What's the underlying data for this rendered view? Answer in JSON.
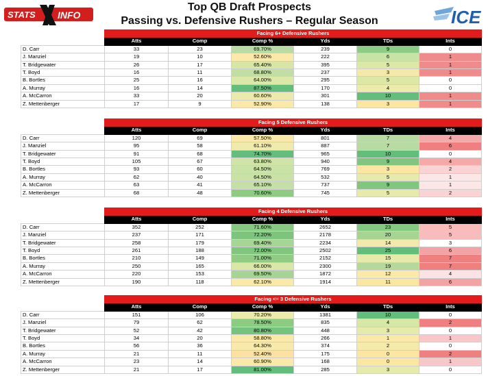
{
  "header": {
    "title_line1": "Top QB Draft Prospects",
    "title_line2": "Passing vs. Defensive Rushers – Regular Season",
    "logo_left_text": "STATS XINFO",
    "logo_right_text": "ICE"
  },
  "columns": [
    "Atts",
    "Comp",
    "Comp %",
    "Yds",
    "TDs",
    "Ints"
  ],
  "colors": {
    "bar_red": "#e21b1b",
    "header_black": "#000000"
  },
  "sections": [
    {
      "title": "Facing 6+ Defensive Rushers",
      "rows": [
        {
          "name": "D. Carr",
          "atts": "33",
          "comp": "23",
          "pct": "69.70%",
          "yds": "239",
          "tds": "9",
          "ints": "0",
          "c_pct": "#b9dca7",
          "c_tds": "#8dcc84",
          "c_ints": "#ffffff"
        },
        {
          "name": "J. Manziel",
          "atts": "19",
          "comp": "10",
          "pct": "52.60%",
          "yds": "222",
          "tds": "6",
          "ints": "1",
          "c_pct": "#fbe9a9",
          "c_tds": "#c7e3a6",
          "c_ints": "#f08b8b"
        },
        {
          "name": "T. Bridgewater",
          "atts": "26",
          "comp": "17",
          "pct": "65.40%",
          "yds": "395",
          "tds": "5",
          "ints": "1",
          "c_pct": "#d7e6a5",
          "c_tds": "#dbe8a6",
          "c_ints": "#f08b8b"
        },
        {
          "name": "T. Boyd",
          "atts": "16",
          "comp": "11",
          "pct": "68.80%",
          "yds": "237",
          "tds": "3",
          "ints": "1",
          "c_pct": "#c1dea5",
          "c_tds": "#f6e8a8",
          "c_ints": "#f08b8b"
        },
        {
          "name": "B. Bortles",
          "atts": "25",
          "comp": "16",
          "pct": "64.00%",
          "yds": "295",
          "tds": "5",
          "ints": "0",
          "c_pct": "#dce8a7",
          "c_tds": "#dbe8a6",
          "c_ints": "#ffffff"
        },
        {
          "name": "A. Murray",
          "atts": "16",
          "comp": "14",
          "pct": "87.50%",
          "yds": "170",
          "tds": "4",
          "ints": "0",
          "c_pct": "#63be7b",
          "c_tds": "#ecebaa",
          "c_ints": "#ffffff"
        },
        {
          "name": "A. McCarron",
          "atts": "33",
          "comp": "20",
          "pct": "60.60%",
          "yds": "301",
          "tds": "10",
          "ints": "1",
          "c_pct": "#ebeaab",
          "c_tds": "#63be7b",
          "c_ints": "#f08b8b"
        },
        {
          "name": "Z. Mettenberger",
          "atts": "17",
          "comp": "9",
          "pct": "52.90%",
          "yds": "138",
          "tds": "3",
          "ints": "1",
          "c_pct": "#fbe9a9",
          "c_tds": "#fbe6a2",
          "c_ints": "#f08b8b"
        }
      ]
    },
    {
      "title": "Facing 5 Defensive Rushers",
      "rows": [
        {
          "name": "D. Carr",
          "atts": "120",
          "comp": "69",
          "pct": "57.50%",
          "yds": "801",
          "tds": "7",
          "ints": "4",
          "c_pct": "#fbe9a9",
          "c_tds": "#b7dba3",
          "c_ints": "#f5a9a9"
        },
        {
          "name": "J. Manziel",
          "atts": "95",
          "comp": "58",
          "pct": "61.10%",
          "yds": "887",
          "tds": "7",
          "ints": "6",
          "c_pct": "#f1ebab",
          "c_tds": "#b7dba3",
          "c_ints": "#f08080"
        },
        {
          "name": "T. Bridgewater",
          "atts": "91",
          "comp": "68",
          "pct": "74.70%",
          "yds": "965",
          "tds": "10",
          "ints": "0",
          "c_pct": "#63be7b",
          "c_tds": "#63be7b",
          "c_ints": "#ffffff"
        },
        {
          "name": "T. Boyd",
          "atts": "105",
          "comp": "67",
          "pct": "63.80%",
          "yds": "940",
          "tds": "9",
          "ints": "4",
          "c_pct": "#cfe4a6",
          "c_tds": "#80c67e",
          "c_ints": "#f5a9a9"
        },
        {
          "name": "B. Bortles",
          "atts": "93",
          "comp": "60",
          "pct": "64.50%",
          "yds": "769",
          "tds": "3",
          "ints": "2",
          "c_pct": "#c9e2a6",
          "c_tds": "#fbe6a2",
          "c_ints": "#fad4d4"
        },
        {
          "name": "A. Murray",
          "atts": "62",
          "comp": "40",
          "pct": "64.50%",
          "yds": "532",
          "tds": "5",
          "ints": "1",
          "c_pct": "#c9e2a6",
          "c_tds": "#e6eaaa",
          "c_ints": "#fde6e6"
        },
        {
          "name": "A. McCarron",
          "atts": "63",
          "comp": "41",
          "pct": "65.10%",
          "yds": "737",
          "tds": "9",
          "ints": "1",
          "c_pct": "#c4e0a6",
          "c_tds": "#80c67e",
          "c_ints": "#fde6e6"
        },
        {
          "name": "Z. Mettenberger",
          "atts": "68",
          "comp": "48",
          "pct": "70.60%",
          "yds": "745",
          "tds": "5",
          "ints": "2",
          "c_pct": "#8fcc83",
          "c_tds": "#e6eaaa",
          "c_ints": "#fad4d4"
        }
      ]
    },
    {
      "title": "Facing 4 Defensive Rushers",
      "rows": [
        {
          "name": "D. Carr",
          "atts": "352",
          "comp": "252",
          "pct": "71.60%",
          "yds": "2652",
          "tds": "23",
          "ints": "5",
          "c_pct": "#87c981",
          "c_tds": "#85c880",
          "c_ints": "#f8bcbc"
        },
        {
          "name": "J. Manziel",
          "atts": "237",
          "comp": "171",
          "pct": "72.20%",
          "yds": "2178",
          "tds": "20",
          "ints": "5",
          "c_pct": "#7dc57e",
          "c_tds": "#a6d493",
          "c_ints": "#f8bcbc"
        },
        {
          "name": "T. Bridgewater",
          "atts": "258",
          "comp": "179",
          "pct": "69.40%",
          "yds": "2234",
          "tds": "14",
          "ints": "3",
          "c_pct": "#a7d596",
          "c_tds": "#f1eaaa",
          "c_ints": "#ffffff"
        },
        {
          "name": "T. Boyd",
          "atts": "261",
          "comp": "188",
          "pct": "72.00%",
          "yds": "2502",
          "tds": "25",
          "ints": "6",
          "c_pct": "#80c67e",
          "c_tds": "#63be7b",
          "c_ints": "#f3a3a3"
        },
        {
          "name": "B. Bortles",
          "atts": "210",
          "comp": "149",
          "pct": "71.00%",
          "yds": "2152",
          "tds": "15",
          "ints": "7",
          "c_pct": "#90cc84",
          "c_tds": "#e8eaaa",
          "c_ints": "#f08080"
        },
        {
          "name": "A. Murray",
          "atts": "250",
          "comp": "165",
          "pct": "66.00%",
          "yds": "2300",
          "tds": "19",
          "ints": "7",
          "c_pct": "#dae7a7",
          "c_tds": "#b4d99b",
          "c_ints": "#f08080"
        },
        {
          "name": "A. McCarron",
          "atts": "220",
          "comp": "153",
          "pct": "69.50%",
          "yds": "1872",
          "tds": "12",
          "ints": "4",
          "c_pct": "#a5d495",
          "c_tds": "#fbe9a9",
          "c_ints": "#fce4e4"
        },
        {
          "name": "Z. Mettenberger",
          "atts": "190",
          "comp": "118",
          "pct": "62.10%",
          "yds": "1914",
          "tds": "11",
          "ints": "6",
          "c_pct": "#fbe9a9",
          "c_tds": "#fbe6a2",
          "c_ints": "#f3a3a3"
        }
      ]
    },
    {
      "title": "Facing <= 3 Defensive Rushers",
      "rows": [
        {
          "name": "D. Carr",
          "atts": "151",
          "comp": "106",
          "pct": "70.20%",
          "yds": "1381",
          "tds": "10",
          "ints": "0",
          "c_pct": "#ecebab",
          "c_tds": "#63be7b",
          "c_ints": "#ffffff"
        },
        {
          "name": "J. Manziel",
          "atts": "79",
          "comp": "62",
          "pct": "78.50%",
          "yds": "835",
          "tds": "4",
          "ints": "2",
          "c_pct": "#8ccb82",
          "c_tds": "#d6e7a6",
          "c_ints": "#f08080"
        },
        {
          "name": "T. Bridgewater",
          "atts": "52",
          "comp": "42",
          "pct": "80.80%",
          "yds": "448",
          "tds": "3",
          "ints": "0",
          "c_pct": "#75c37d",
          "c_tds": "#e6eaaa",
          "c_ints": "#ffffff"
        },
        {
          "name": "T. Boyd",
          "atts": "34",
          "comp": "20",
          "pct": "58.80%",
          "yds": "266",
          "tds": "1",
          "ints": "1",
          "c_pct": "#fbe9a9",
          "c_tds": "#fbe9a9",
          "c_ints": "#f9c7c7"
        },
        {
          "name": "B. Bortles",
          "atts": "56",
          "comp": "36",
          "pct": "64.30%",
          "yds": "374",
          "tds": "2",
          "ints": "0",
          "c_pct": "#f7eaaa",
          "c_tds": "#f5eaa9",
          "c_ints": "#ffffff"
        },
        {
          "name": "A. Murray",
          "atts": "21",
          "comp": "11",
          "pct": "52.40%",
          "yds": "175",
          "tds": "0",
          "ints": "2",
          "c_pct": "#fbe2a0",
          "c_tds": "#fbe6a2",
          "c_ints": "#f08080"
        },
        {
          "name": "A. McCarron",
          "atts": "23",
          "comp": "14",
          "pct": "60.90%",
          "yds": "168",
          "tds": "0",
          "ints": "1",
          "c_pct": "#fbe9a9",
          "c_tds": "#fbe6a2",
          "c_ints": "#f9c7c7"
        },
        {
          "name": "Z. Mettenberger",
          "atts": "21",
          "comp": "17",
          "pct": "81.00%",
          "yds": "285",
          "tds": "3",
          "ints": "0",
          "c_pct": "#63be7b",
          "c_tds": "#e6eaaa",
          "c_ints": "#ffffff"
        }
      ]
    }
  ]
}
